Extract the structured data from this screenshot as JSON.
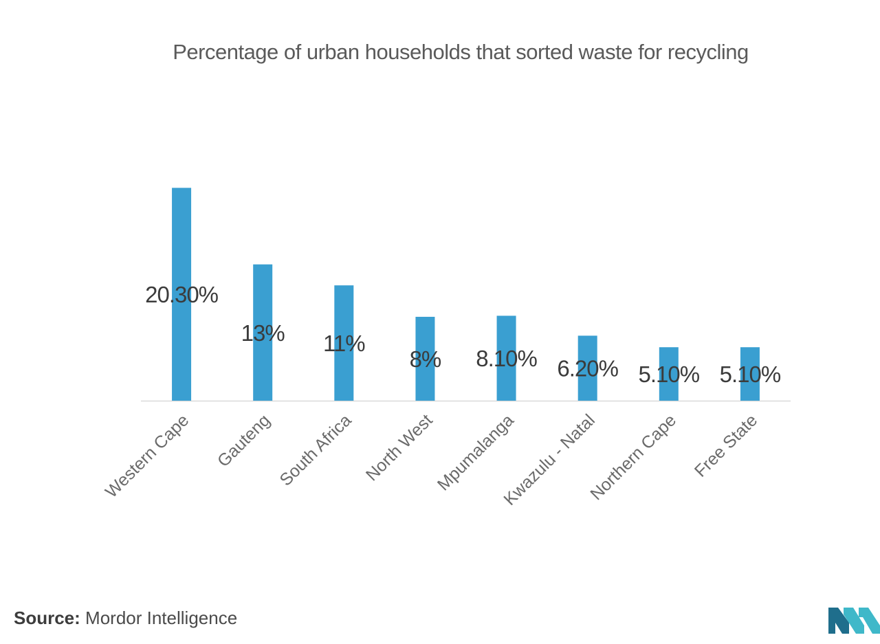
{
  "page_title": "Percentage of urban households that sorted waste for recycling",
  "source": {
    "label": "Source:",
    "text": "Mordor Intelligence"
  },
  "logo": {
    "icon": "mordor-intelligence-logo",
    "colors": [
      "#1f6e8c",
      "#3fb8c9"
    ]
  },
  "colors": {
    "bar": "#3a9fd1",
    "axis": "#d9d9d9",
    "label": "#3b3b3b",
    "tick": "#6a6a6a"
  },
  "chart_data": {
    "type": "bar",
    "title": "Percentage of urban households that sorted waste for recycling",
    "xlabel": "",
    "ylabel": "",
    "ylim": [
      0,
      21.5
    ],
    "grid": false,
    "legend": "none",
    "categories": [
      "Western Cape",
      "Gauteng",
      "South Africa",
      "North West",
      "Mpumalanga",
      "Kwazulu - Natal",
      "Northern Cape",
      "Free State"
    ],
    "values": [
      20.3,
      13,
      11,
      8,
      8.1,
      6.2,
      5.1,
      5.1
    ],
    "data_labels": [
      "20.30%",
      "13%",
      "11%",
      "8%",
      "8.10%",
      "6.20%",
      "5.10%",
      "5.10%"
    ]
  }
}
